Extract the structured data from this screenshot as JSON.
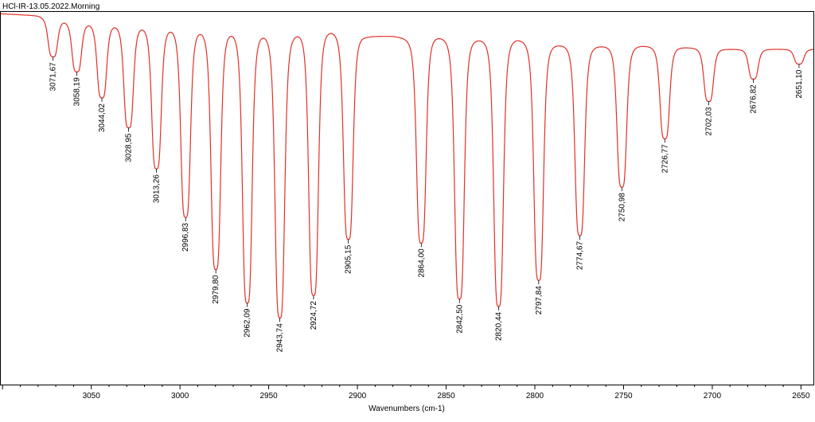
{
  "header": {
    "title": "HCl-IR-13.05.2022.Morning"
  },
  "chart_data": {
    "type": "line",
    "title": "HCl-IR-13.05.2022.Morning",
    "xlabel": "Wavenumbers (cm-1)",
    "ylabel": "",
    "x_reversed": true,
    "xlim": [
      3101,
      2643
    ],
    "ylim": [
      0,
      1
    ],
    "grid": false,
    "legend": "none",
    "line_color": "#e0312a",
    "xticks": [
      3050,
      3000,
      2950,
      2900,
      2850,
      2800,
      2750,
      2700,
      2650
    ],
    "xtick_labels": [
      "3050",
      "3000",
      "2950",
      "2900",
      "2850",
      "2800",
      "2750",
      "2700",
      "2650"
    ],
    "baseline": [
      [
        3101,
        0.995
      ],
      [
        3080,
        0.99
      ],
      [
        3060,
        0.975
      ],
      [
        3040,
        0.97
      ],
      [
        3020,
        0.965
      ],
      [
        3000,
        0.96
      ],
      [
        2980,
        0.955
      ],
      [
        2960,
        0.95
      ],
      [
        2940,
        0.94
      ],
      [
        2925,
        0.96
      ],
      [
        2910,
        0.95
      ],
      [
        2895,
        0.935
      ],
      [
        2880,
        0.935
      ],
      [
        2870,
        0.93
      ],
      [
        2860,
        0.94
      ],
      [
        2845,
        0.93
      ],
      [
        2830,
        0.93
      ],
      [
        2810,
        0.93
      ],
      [
        2790,
        0.915
      ],
      [
        2770,
        0.91
      ],
      [
        2740,
        0.91
      ],
      [
        2715,
        0.905
      ],
      [
        2690,
        0.9
      ],
      [
        2665,
        0.9
      ],
      [
        2643,
        0.9
      ]
    ],
    "peaks": [
      {
        "x": 3071.67,
        "label": "3071,67",
        "y": 0.88
      },
      {
        "x": 3058.19,
        "label": "3058,19",
        "y": 0.84
      },
      {
        "x": 3044.02,
        "label": "3044,02",
        "y": 0.77
      },
      {
        "x": 3028.95,
        "label": "3028,95",
        "y": 0.69
      },
      {
        "x": 3013.26,
        "label": "3013,26",
        "y": 0.58
      },
      {
        "x": 2996.83,
        "label": "2996,83",
        "y": 0.45
      },
      {
        "x": 2979.8,
        "label": "2979,80",
        "y": 0.31
      },
      {
        "x": 2962.09,
        "label": "2962,09",
        "y": 0.22
      },
      {
        "x": 2943.74,
        "label": "2943,74",
        "y": 0.18
      },
      {
        "x": 2924.72,
        "label": "2924,72",
        "y": 0.24
      },
      {
        "x": 2905.15,
        "label": "2905,15",
        "y": 0.39
      },
      {
        "x": 2864.0,
        "label": "2864,00",
        "y": 0.38
      },
      {
        "x": 2842.5,
        "label": "2842,50",
        "y": 0.23
      },
      {
        "x": 2820.44,
        "label": "2820,44",
        "y": 0.21
      },
      {
        "x": 2797.84,
        "label": "2797,84",
        "y": 0.28
      },
      {
        "x": 2774.67,
        "label": "2774,67",
        "y": 0.4
      },
      {
        "x": 2750.98,
        "label": "2750,98",
        "y": 0.53
      },
      {
        "x": 2726.77,
        "label": "2726,77",
        "y": 0.66
      },
      {
        "x": 2702.03,
        "label": "2702,03",
        "y": 0.76
      },
      {
        "x": 2676.82,
        "label": "2676,82",
        "y": 0.82
      },
      {
        "x": 2651.1,
        "label": "2651,10",
        "y": 0.86
      }
    ]
  }
}
